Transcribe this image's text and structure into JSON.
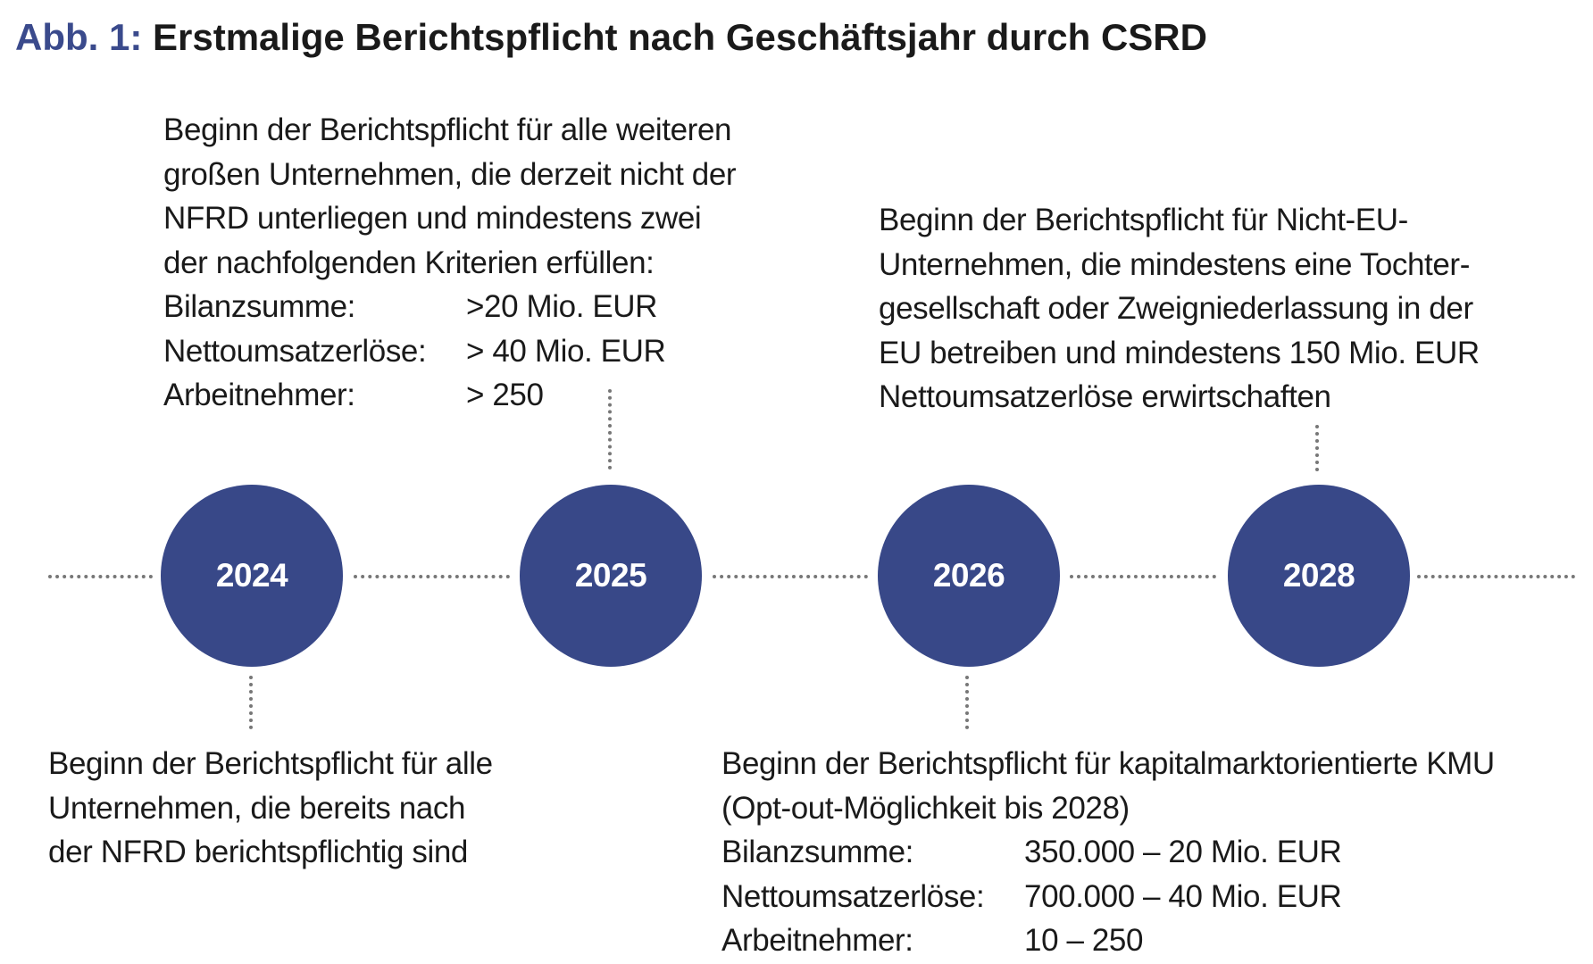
{
  "title": {
    "figure_label": "Abb. 1:",
    "text": "Erstmalige Berichtspflicht nach Geschäftsjahr durch CSRD"
  },
  "colors": {
    "node_fill": "#384888",
    "title_accent": "#3a4a8c",
    "dotted_line": "#777777"
  },
  "timeline": [
    {
      "year": "2024"
    },
    {
      "year": "2025"
    },
    {
      "year": "2026"
    },
    {
      "year": "2028"
    }
  ],
  "events": {
    "e2024": {
      "lines": [
        "Beginn der Berichtspflicht für alle",
        "Unternehmen, die bereits nach",
        "der NFRD berichtspflichtig sind"
      ]
    },
    "e2025": {
      "lines": [
        "Beginn der Berichtspflicht für alle weiteren",
        "großen Unternehmen, die derzeit nicht der",
        "NFRD unterliegen und mindestens zwei",
        "der nachfolgenden Kriterien erfüllen:"
      ],
      "criteria": [
        {
          "label": "Bilanzsumme:",
          "value": ">20 Mio. EUR"
        },
        {
          "label": "Nettoumsatzerlöse:",
          "value": "> 40 Mio. EUR"
        },
        {
          "label": "Arbeitnehmer:",
          "value": "> 250"
        }
      ]
    },
    "e2026": {
      "lines": [
        "Beginn der Berichtspflicht für kapitalmarktorientierte KMU",
        "(Opt-out-Möglichkeit bis 2028)"
      ],
      "criteria": [
        {
          "label": "Bilanzsumme:",
          "value": "350.000 – 20 Mio. EUR"
        },
        {
          "label": "Nettoumsatzerlöse:",
          "value": "700.000 – 40 Mio. EUR"
        },
        {
          "label": "Arbeitnehmer:",
          "value": "10 – 250"
        }
      ]
    },
    "e2028": {
      "lines": [
        "Beginn der Berichtspflicht für Nicht-EU-",
        "Unternehmen, die mindestens eine Tochter-",
        "gesellschaft oder Zweigniederlassung in der",
        "EU betreiben und mindestens 150 Mio. EUR",
        "Nettoumsatzerlöse erwirtschaften"
      ]
    }
  }
}
